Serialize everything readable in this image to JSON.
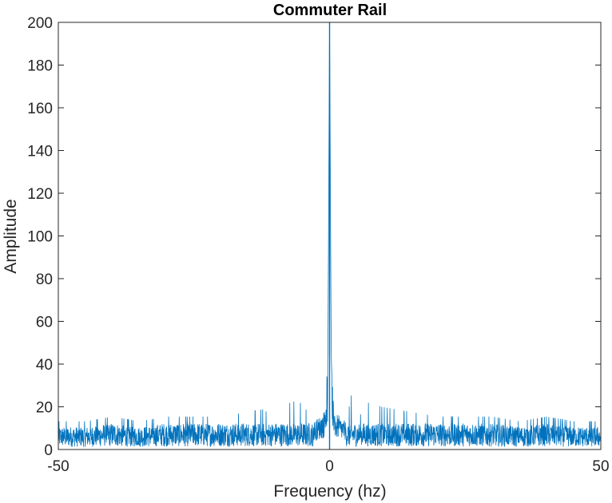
{
  "chart_data": {
    "type": "line",
    "title": "Commuter Rail",
    "xlabel": "Frequency (hz)",
    "ylabel": "Amplitude",
    "xlim": [
      -50,
      50
    ],
    "ylim": [
      0,
      200
    ],
    "xticks": [
      -50,
      0,
      50
    ],
    "xtick_labels": [
      "-50",
      "0",
      "50"
    ],
    "yticks": [
      0,
      20,
      40,
      60,
      80,
      100,
      120,
      140,
      160,
      180,
      200
    ],
    "ytick_labels": [
      "0",
      "20",
      "40",
      "60",
      "80",
      "100",
      "120",
      "140",
      "160",
      "180",
      "200"
    ],
    "grid": false,
    "series": [
      {
        "color": "#0072BD",
        "description_points": {
          "x": [
            -50,
            -45,
            -40,
            -35,
            -30,
            -25,
            -20,
            -15,
            -10,
            -7,
            -5,
            -3,
            -2,
            -1,
            -0.6,
            -0.3,
            0,
            0.3,
            0.6,
            1,
            2,
            3,
            5,
            7,
            10,
            15,
            20,
            25,
            30,
            35,
            40,
            45,
            50
          ],
          "y": [
            6,
            6,
            7,
            6,
            7,
            7,
            7,
            8,
            9,
            10,
            11,
            13,
            15,
            18,
            30,
            44,
            200,
            44,
            30,
            18,
            15,
            13,
            11,
            10,
            9,
            8,
            7,
            7,
            7,
            6,
            7,
            6,
            6
          ]
        },
        "peak": {
          "x": 0,
          "y": 200
        },
        "noise_floor_range": [
          0,
          14
        ]
      }
    ]
  }
}
